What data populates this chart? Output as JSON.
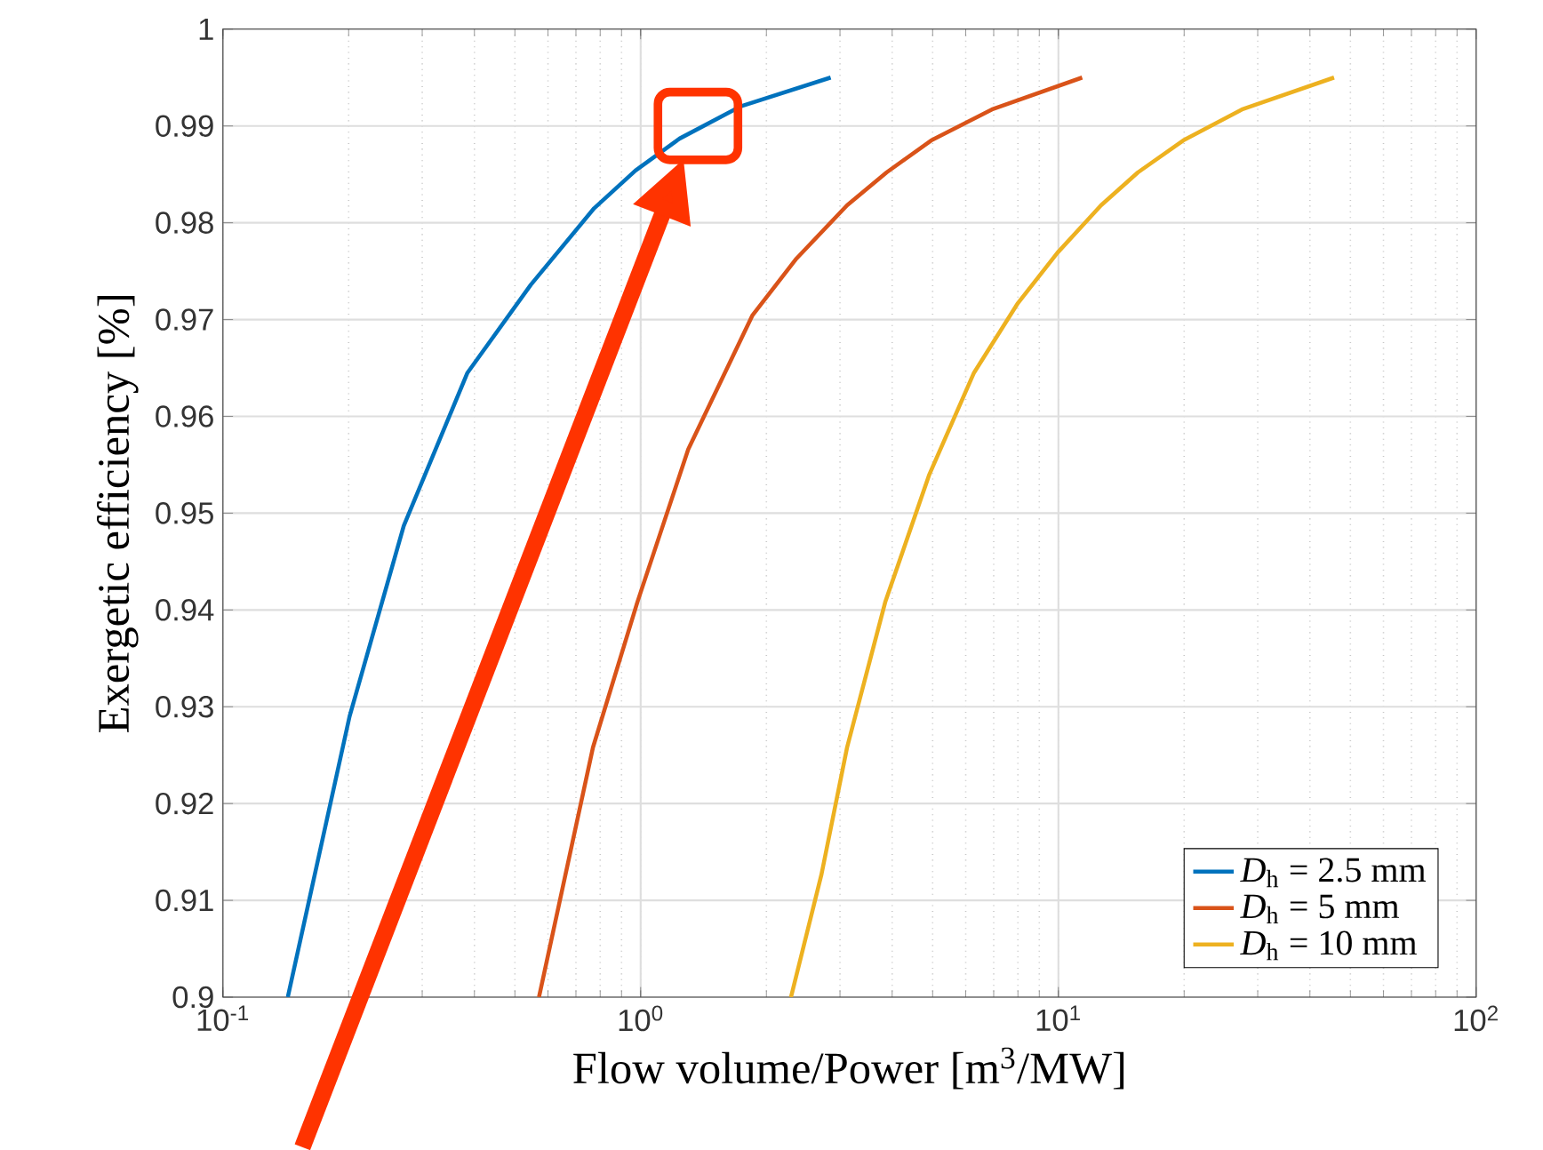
{
  "chart_data": {
    "type": "line",
    "xlabel": "Flow volume/Power [m$^{3}$/MW]",
    "ylabel": "Exergetic efficiency [%]",
    "log": "x",
    "grid": true,
    "legend": "bottom right",
    "xlim": [
      0.1,
      100
    ],
    "xticks": [
      {
        "value": 0.1,
        "label": "10$^{-1}$"
      },
      {
        "value": 1,
        "label": "10$^{0}$"
      },
      {
        "value": 10,
        "label": "10$^{1}$"
      },
      {
        "value": 100,
        "label": "10$^{2}$"
      }
    ],
    "ylim": [
      0.9,
      1
    ],
    "yticks": [
      0.9,
      0.91,
      0.92,
      0.93,
      0.94,
      0.95,
      0.96,
      0.97,
      0.98,
      0.99,
      1
    ],
    "series": [
      {
        "name": "*D*$_{h}$ = 2.5 mm",
        "color": "#0072bd",
        "x": [
          0.143,
          0.201,
          0.271,
          0.385,
          0.546,
          0.774,
          0.972,
          1.24,
          1.73,
          2.85
        ],
        "values": [
          0.9,
          0.929,
          0.9487,
          0.9645,
          0.9736,
          0.9815,
          0.9854,
          0.9887,
          0.992,
          0.995
        ]
      },
      {
        "name": "*D*$_{h}$ = 5 mm",
        "color": "#d95319",
        "x": [
          0.571,
          0.769,
          0.982,
          1.3,
          1.85,
          2.36,
          3.12,
          3.88,
          4.96,
          6.93,
          11.4
        ],
        "values": [
          0.9,
          0.9258,
          0.9408,
          0.9566,
          0.9704,
          0.9763,
          0.9818,
          0.9852,
          0.9885,
          0.9917,
          0.995
        ]
      },
      {
        "name": "*D*$_{h}$ = 10 mm",
        "color": "#edb120",
        "x": [
          2.29,
          2.71,
          3.12,
          3.85,
          4.91,
          6.28,
          8.0,
          9.95,
          12.65,
          15.5,
          19.9,
          27.5,
          45.7
        ],
        "values": [
          0.9,
          0.9127,
          0.9258,
          0.9408,
          0.954,
          0.9645,
          0.9717,
          0.9769,
          0.9818,
          0.9852,
          0.9885,
          0.9917,
          0.995
        ]
      }
    ]
  }
}
